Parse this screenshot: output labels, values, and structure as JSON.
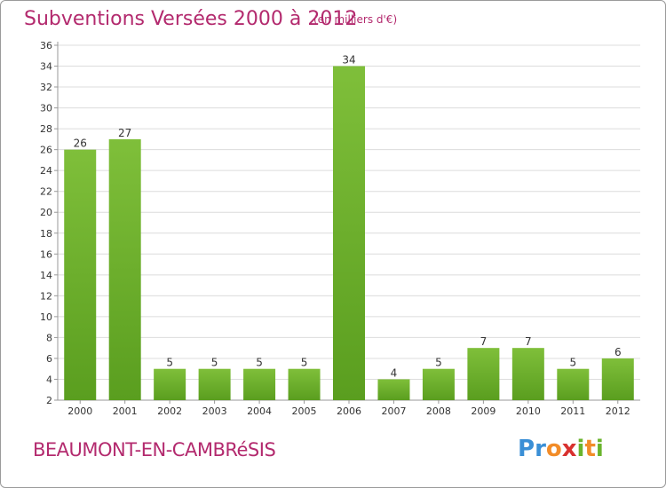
{
  "title": "Subventions Versées 2000 à 2012",
  "unit_note": "(en milliers d'€)",
  "commune": "BEAUMONT-EN-CAMBRéSIS",
  "logo": {
    "letters": [
      "P",
      "r",
      "o",
      "x",
      "i",
      "t",
      "i"
    ],
    "colors": [
      "#3a8fd6",
      "#3a8fd6",
      "#f28c28",
      "#d8312f",
      "#6ab42d",
      "#f28c28",
      "#6ab42d"
    ]
  },
  "colors": {
    "bar": "#7fbf3a",
    "bar_dark": "#5a9e1f",
    "title": "#b32a6e",
    "axis": "#999999",
    "grid": "#dcdcdc"
  },
  "chart_data": {
    "type": "bar",
    "categories": [
      "2000",
      "2001",
      "2002",
      "2003",
      "2004",
      "2005",
      "2006",
      "2007",
      "2008",
      "2009",
      "2010",
      "2011",
      "2012"
    ],
    "values": [
      26,
      27,
      5,
      5,
      5,
      5,
      34,
      4,
      5,
      7,
      7,
      5,
      6
    ],
    "ylim": [
      2,
      36
    ],
    "yticks": [
      2,
      4,
      6,
      8,
      10,
      12,
      14,
      16,
      18,
      20,
      22,
      24,
      26,
      28,
      30,
      32,
      34,
      36
    ],
    "grid": true,
    "legend": "none"
  }
}
